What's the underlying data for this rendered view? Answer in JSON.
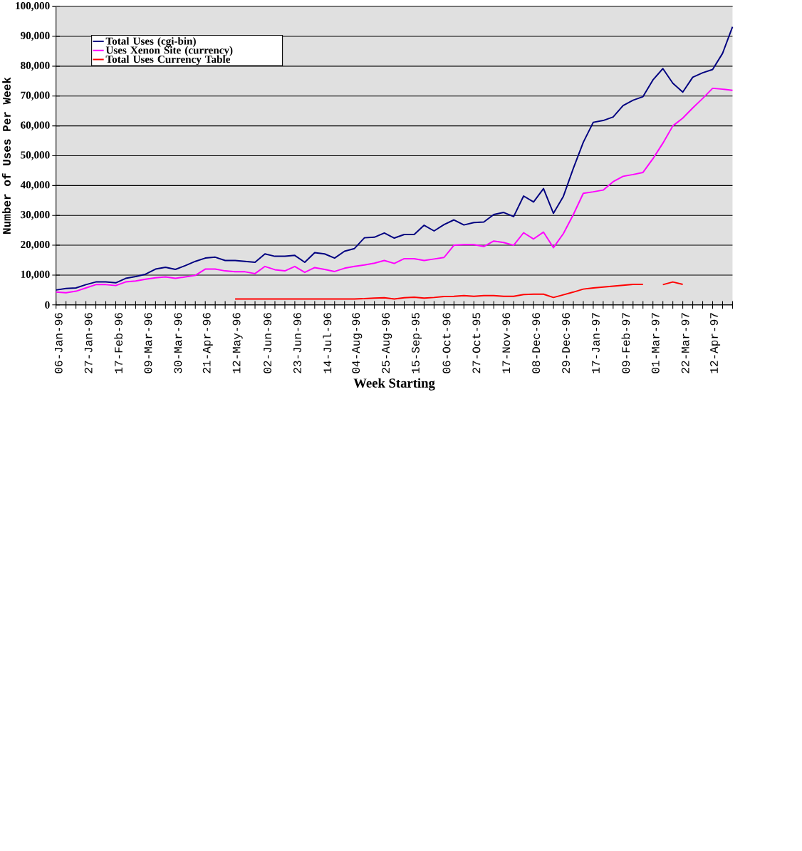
{
  "chart_data": {
    "type": "line",
    "xlabel": "Week Starting",
    "ylabel": "Number of Uses Per Week",
    "categories": [
      "06-Jan-96",
      null,
      null,
      "27-Jan-96",
      null,
      null,
      "17-Feb-96",
      null,
      null,
      "09-Mar-96",
      null,
      null,
      "30-Mar-96",
      null,
      null,
      "21-Apr-96",
      null,
      null,
      "12-May-96",
      null,
      null,
      "02-Jun-96",
      null,
      null,
      "23-Jun-96",
      null,
      null,
      "14-Jul-96",
      null,
      null,
      "04-Aug-96",
      null,
      null,
      "25-Aug-96",
      null,
      null,
      "15-Sep-95",
      null,
      null,
      "06-Oct-96",
      null,
      null,
      "27-Oct-95",
      null,
      null,
      "17-Nov-96",
      null,
      null,
      "08-Dec-96",
      null,
      null,
      "29-Dec-96",
      null,
      null,
      "17-Jan-97",
      null,
      null,
      "09-Feb-97",
      null,
      null,
      "01-Mar-97",
      null,
      null,
      "22-Mar-97",
      null,
      null,
      "12-Apr-97",
      null,
      null
    ],
    "series": [
      {
        "name": "Total Uses (cgi-bin)",
        "color": "#000080",
        "values": [
          5000,
          5500,
          5700,
          6800,
          7700,
          7700,
          7400,
          8900,
          9500,
          10300,
          12000,
          12600,
          11900,
          13200,
          14600,
          15700,
          16000,
          14900,
          14900,
          14600,
          14300,
          17100,
          16300,
          16300,
          16600,
          14300,
          17500,
          17100,
          15700,
          18000,
          18900,
          22500,
          22700,
          24100,
          22400,
          23600,
          23600,
          26700,
          24800,
          26900,
          28500,
          26800,
          27600,
          27800,
          30300,
          31000,
          29600,
          36500,
          34500,
          39000,
          30700,
          36400,
          45800,
          54500,
          61200,
          61800,
          63000,
          66800,
          68600,
          69800,
          75400,
          79200,
          74300,
          71300,
          76300,
          77800,
          78900,
          84300,
          93200
        ]
      },
      {
        "name": "Uses Xenon Site (currency)",
        "color": "#ff00ff",
        "values": [
          4300,
          4100,
          4600,
          5700,
          6800,
          6800,
          6500,
          7700,
          8000,
          8600,
          9100,
          9400,
          8900,
          9400,
          9900,
          12000,
          12000,
          11400,
          11100,
          11100,
          10500,
          12900,
          11800,
          11400,
          12900,
          10900,
          12500,
          11900,
          11200,
          12300,
          12900,
          13400,
          14000,
          14900,
          13900,
          15500,
          15500,
          14900,
          15400,
          15900,
          20000,
          20200,
          20200,
          19600,
          21400,
          20900,
          20000,
          24200,
          22100,
          24400,
          19200,
          23900,
          30300,
          37400,
          37900,
          38500,
          41300,
          43100,
          43700,
          44400,
          49000,
          54200,
          60000,
          62600,
          66000,
          69200,
          72600,
          72300,
          71900
        ]
      },
      {
        "name": "Total Uses Currency Table",
        "color": "#ff0000",
        "values": [
          null,
          null,
          null,
          null,
          null,
          null,
          null,
          null,
          null,
          null,
          null,
          null,
          null,
          null,
          null,
          null,
          null,
          null,
          2000,
          2000,
          2000,
          2000,
          2000,
          2000,
          2000,
          2000,
          2000,
          2000,
          2000,
          2000,
          2000,
          2100,
          2300,
          2400,
          2000,
          2400,
          2600,
          2300,
          2500,
          2800,
          2900,
          3100,
          2900,
          3100,
          3100,
          2900,
          2900,
          3500,
          3600,
          3600,
          2500,
          3400,
          4300,
          5300,
          5700,
          6000,
          6300,
          6600,
          6900,
          6900,
          null,
          6800,
          7700,
          6900,
          null,
          null,
          null,
          null,
          null
        ]
      }
    ],
    "ylim": [
      0,
      100000
    ],
    "yticks": [
      0,
      {
        "value": 10000,
        "label": "10,000"
      },
      {
        "value": 20000,
        "label": "20,000"
      },
      {
        "value": 30000,
        "label": "30,000"
      },
      {
        "value": 40000,
        "label": "40,000"
      },
      {
        "value": 50000,
        "label": "50,000"
      },
      {
        "value": 60000,
        "label": "60,000"
      },
      {
        "value": 70000,
        "label": "70,000"
      },
      {
        "value": 80000,
        "label": "80,000"
      },
      {
        "value": 90000,
        "label": "90,000"
      },
      {
        "value": 100000,
        "label": "100,000"
      }
    ],
    "grid": "y",
    "legend": "top left"
  }
}
